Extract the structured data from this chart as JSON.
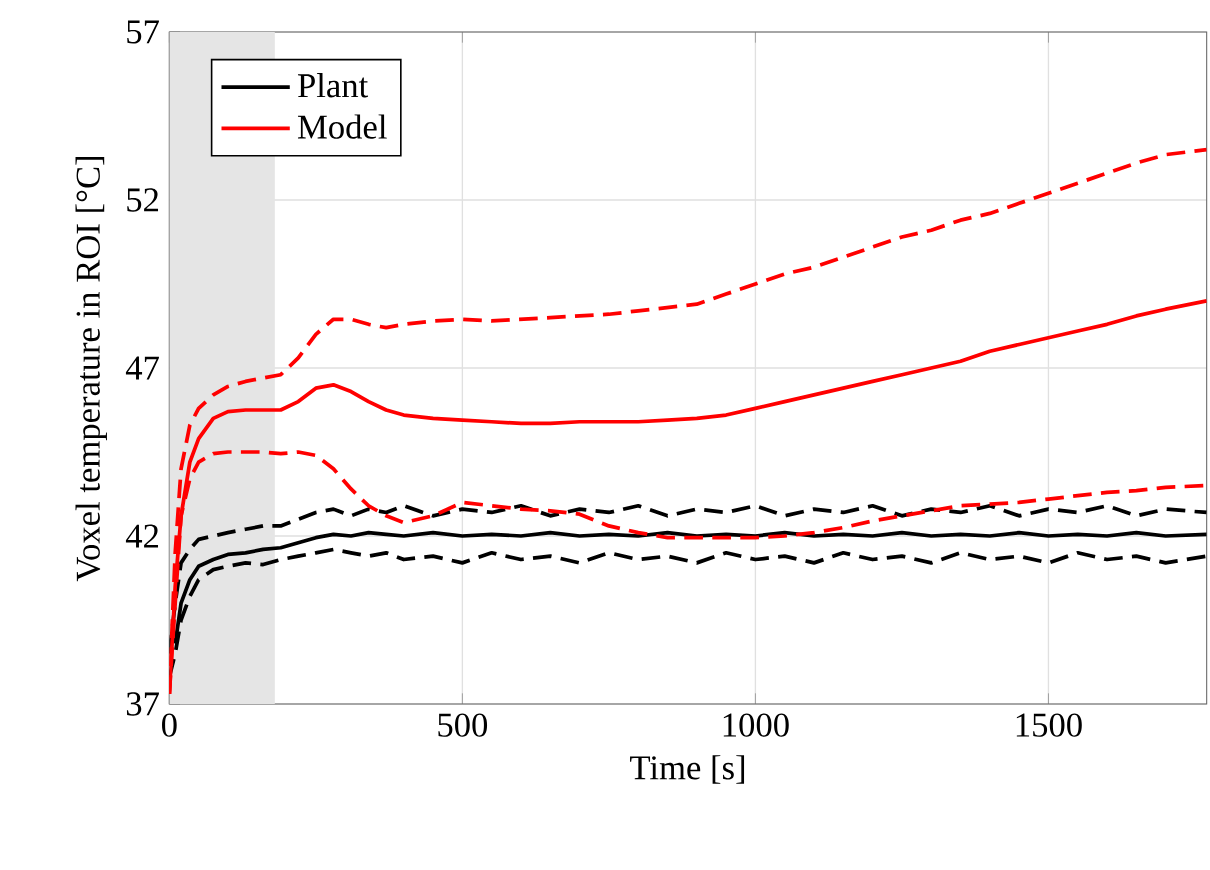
{
  "chart_data": {
    "type": "line",
    "xlabel": "Time [s]",
    "ylabel": "Voxel temperature in ROI [°C]",
    "xlim": [
      0,
      1770
    ],
    "ylim": [
      37,
      57
    ],
    "xticks": [
      0,
      500,
      1000,
      1500
    ],
    "yticks": [
      37,
      42,
      47,
      52,
      57
    ],
    "grid": true,
    "legend": "top left",
    "bands": [
      {
        "axis": "x",
        "from": 0,
        "to": 180,
        "color": "#e5e5e5"
      }
    ],
    "x": [
      0,
      10,
      20,
      35,
      50,
      75,
      100,
      130,
      160,
      190,
      220,
      250,
      280,
      310,
      340,
      370,
      400,
      450,
      500,
      550,
      600,
      650,
      700,
      750,
      800,
      850,
      900,
      950,
      1000,
      1050,
      1100,
      1150,
      1200,
      1250,
      1300,
      1350,
      1400,
      1450,
      1500,
      1550,
      1600,
      1650,
      1700,
      1770
    ],
    "series": [
      {
        "name": "Plant",
        "color": "#000000",
        "line_style": "solid",
        "values": [
          null,
          38.8,
          40.0,
          40.7,
          41.1,
          41.3,
          41.45,
          41.5,
          41.6,
          41.65,
          41.8,
          41.95,
          42.05,
          42.0,
          42.1,
          42.05,
          42.0,
          42.1,
          42.0,
          42.05,
          42.0,
          42.1,
          42.0,
          42.05,
          42.0,
          42.1,
          42.0,
          42.05,
          42.0,
          42.1,
          42.0,
          42.05,
          42.0,
          42.1,
          42.0,
          42.05,
          42.0,
          42.1,
          42.0,
          42.05,
          42.0,
          42.1,
          42.0,
          42.05
        ]
      },
      {
        "color": "#000000",
        "line_style": "dashed",
        "values": [
          38.5,
          40.0,
          41.2,
          41.6,
          41.9,
          42.0,
          42.1,
          42.2,
          42.3,
          42.3,
          42.5,
          42.7,
          42.8,
          42.6,
          42.8,
          42.7,
          42.9,
          42.6,
          42.8,
          42.7,
          42.9,
          42.6,
          42.8,
          42.7,
          42.9,
          42.6,
          42.8,
          42.7,
          42.9,
          42.6,
          42.8,
          42.7,
          42.9,
          42.6,
          42.8,
          42.7,
          42.9,
          42.6,
          42.8,
          42.7,
          42.9,
          42.6,
          42.8,
          42.7
        ]
      },
      {
        "color": "#000000",
        "line_style": "dashed",
        "values": [
          37.8,
          38.5,
          39.5,
          40.2,
          40.7,
          41.0,
          41.1,
          41.2,
          41.15,
          41.3,
          41.4,
          41.5,
          41.6,
          41.5,
          41.4,
          41.5,
          41.3,
          41.4,
          41.2,
          41.5,
          41.3,
          41.4,
          41.2,
          41.5,
          41.3,
          41.4,
          41.2,
          41.5,
          41.3,
          41.4,
          41.2,
          41.5,
          41.3,
          41.4,
          41.2,
          41.5,
          41.3,
          41.4,
          41.2,
          41.5,
          41.3,
          41.4,
          41.2,
          41.4
        ]
      },
      {
        "name": "Model",
        "color": "#ff0000",
        "line_style": "solid",
        "values": [
          37.3,
          40.5,
          42.6,
          44.2,
          44.9,
          45.5,
          45.7,
          45.75,
          45.75,
          45.75,
          46.0,
          46.4,
          46.5,
          46.3,
          46.0,
          45.75,
          45.6,
          45.5,
          45.45,
          45.4,
          45.35,
          45.35,
          45.4,
          45.4,
          45.4,
          45.45,
          45.5,
          45.6,
          45.8,
          46.0,
          46.2,
          46.4,
          46.6,
          46.8,
          47.0,
          47.2,
          47.5,
          47.7,
          47.9,
          48.1,
          48.3,
          48.55,
          48.75,
          49.0
        ]
      },
      {
        "color": "#ff0000",
        "line_style": "dashed",
        "values": [
          37.3,
          41.5,
          44.0,
          45.3,
          45.8,
          46.2,
          46.45,
          46.6,
          46.7,
          46.8,
          47.3,
          48.0,
          48.45,
          48.45,
          48.3,
          48.2,
          48.3,
          48.4,
          48.45,
          48.4,
          48.45,
          48.5,
          48.55,
          48.6,
          48.7,
          48.8,
          48.9,
          49.2,
          49.5,
          49.8,
          50.0,
          50.3,
          50.6,
          50.9,
          51.1,
          51.4,
          51.6,
          51.9,
          52.2,
          52.5,
          52.8,
          53.1,
          53.35,
          53.5
        ]
      },
      {
        "color": "#ff0000",
        "line_style": "dashed",
        "values": [
          37.3,
          40.0,
          42.6,
          43.7,
          44.2,
          44.45,
          44.5,
          44.5,
          44.5,
          44.45,
          44.5,
          44.4,
          44.0,
          43.4,
          42.9,
          42.6,
          42.4,
          42.6,
          43.0,
          42.9,
          42.8,
          42.75,
          42.65,
          42.3,
          42.1,
          41.95,
          41.95,
          41.95,
          41.95,
          42.0,
          42.1,
          42.25,
          42.45,
          42.6,
          42.75,
          42.9,
          42.95,
          43.0,
          43.1,
          43.2,
          43.3,
          43.35,
          43.45,
          43.5
        ]
      }
    ]
  }
}
